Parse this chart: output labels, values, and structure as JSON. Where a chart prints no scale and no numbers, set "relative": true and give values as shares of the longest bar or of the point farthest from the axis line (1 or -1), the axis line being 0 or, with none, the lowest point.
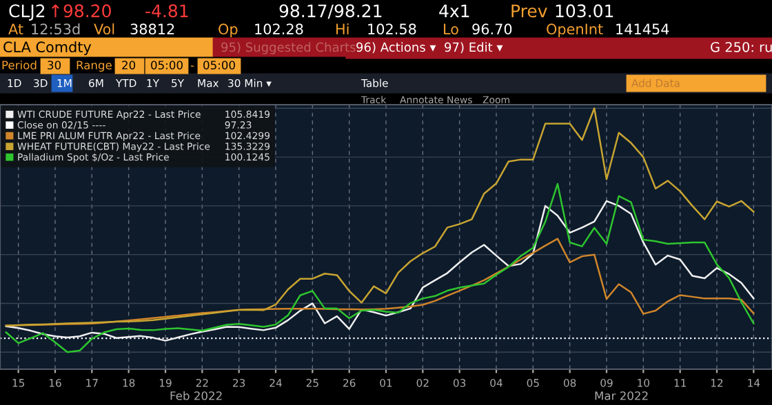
{
  "chart_data": {
    "type": "line",
    "relative": true,
    "legend": "top left",
    "grid": true,
    "marker": "none",
    "line_style": "solid",
    "categories": [
      null,
      "15",
      null,
      null,
      "16",
      null,
      null,
      "17",
      null,
      null,
      "18",
      null,
      null,
      "19",
      null,
      null,
      "22",
      null,
      null,
      "23",
      null,
      null,
      "24",
      null,
      null,
      "25",
      null,
      null,
      "26",
      null,
      null,
      "01",
      null,
      null,
      "02",
      null,
      null,
      "03",
      null,
      null,
      "04",
      null,
      null,
      "05",
      null,
      null,
      "08",
      null,
      null,
      "09",
      null,
      null,
      "10",
      null,
      null,
      "11",
      null,
      null,
      "12",
      null,
      null,
      "14",
      null
    ],
    "series": [
      {
        "name": "WTI CRUDE FUTURE Apr22 - Last Price",
        "color": "#f0f0f0",
        "values": [
          0.106,
          0.099,
          0.088,
          0.074,
          0.065,
          0.06,
          0.065,
          0.08,
          0.075,
          0.058,
          0.062,
          0.066,
          0.059,
          0.047,
          0.06,
          0.073,
          0.084,
          0.093,
          0.104,
          0.103,
          0.096,
          0.09,
          0.1,
          0.131,
          0.17,
          0.2,
          0.118,
          0.147,
          0.095,
          0.175,
          0.164,
          0.15,
          0.164,
          0.179,
          0.265,
          0.295,
          0.324,
          0.368,
          0.409,
          0.44,
          0.396,
          0.353,
          0.362,
          0.404,
          0.6,
          0.56,
          0.49,
          0.511,
          0.536,
          0.62,
          0.6,
          0.567,
          0.45,
          0.359,
          0.396,
          0.38,
          0.313,
          0.303,
          0.345,
          0.32,
          0.284,
          0.22,
          null
        ]
      },
      {
        "name": "LME PRI ALUM FUTR Apr22 - Last Price",
        "color": "#d0852a",
        "values": [
          0.109,
          0.11,
          0.111,
          0.112,
          0.114,
          0.115,
          0.116,
          0.117,
          0.121,
          0.126,
          0.13,
          0.135,
          0.14,
          0.145,
          0.15,
          0.155,
          0.16,
          0.164,
          0.169,
          0.174,
          0.175,
          0.176,
          0.177,
          0.178,
          0.178,
          0.178,
          0.177,
          0.176,
          0.176,
          0.175,
          0.176,
          0.178,
          0.182,
          0.187,
          0.194,
          0.21,
          0.231,
          0.252,
          0.273,
          0.295,
          0.323,
          0.351,
          0.38,
          0.407,
          0.437,
          0.465,
          0.368,
          0.393,
          0.4,
          0.218,
          0.279,
          0.245,
          0.157,
          0.17,
          0.208,
          0.234,
          0.227,
          0.22,
          0.22,
          0.22,
          0.215,
          0.159,
          null
        ]
      },
      {
        "name": "WHEAT FUTURE(CBT) May22 - Last Price",
        "color": "#c8a431",
        "values": [
          0.109,
          0.111,
          0.113,
          0.114,
          0.116,
          0.118,
          0.119,
          0.121,
          0.123,
          0.125,
          0.126,
          0.128,
          0.131,
          0.137,
          0.143,
          0.149,
          0.155,
          0.161,
          0.167,
          0.173,
          0.174,
          0.172,
          0.195,
          0.257,
          0.301,
          0.301,
          0.322,
          0.316,
          0.251,
          0.203,
          0.27,
          0.241,
          0.326,
          0.373,
          0.406,
          0.433,
          0.511,
          0.525,
          0.545,
          0.65,
          0.692,
          0.782,
          0.79,
          0.79,
          0.937,
          0.937,
          0.937,
          0.87,
          1.0,
          0.709,
          0.9,
          0.858,
          0.8,
          0.671,
          0.703,
          0.66,
          0.6,
          0.545,
          0.618,
          0.597,
          0.62,
          0.576,
          null
        ]
      },
      {
        "name": "Palladium Spot $/Oz - Last Price",
        "color": "#2ec52e",
        "values": [
          0.081,
          0.037,
          0.057,
          0.078,
          0.04,
          0.0,
          0.006,
          0.055,
          0.081,
          0.094,
          0.097,
          0.091,
          0.09,
          0.095,
          0.098,
          0.093,
          0.088,
          0.1,
          0.112,
          0.116,
          0.11,
          0.104,
          0.113,
          0.151,
          0.233,
          0.251,
          0.179,
          0.179,
          0.139,
          0.17,
          0.174,
          0.166,
          0.162,
          0.201,
          0.22,
          0.23,
          0.252,
          0.265,
          0.273,
          0.281,
          0.317,
          0.35,
          0.394,
          0.428,
          0.535,
          0.69,
          0.45,
          0.434,
          0.51,
          0.444,
          0.64,
          0.615,
          0.461,
          0.455,
          0.444,
          0.447,
          0.45,
          0.45,
          0.36,
          0.304,
          0.205,
          0.118,
          null
        ]
      }
    ],
    "ref_lines": [
      {
        "axis": "y",
        "value": 0.057,
        "label": "Close on 02/15 ----",
        "color": "#ffffff",
        "line_style": "dotted"
      }
    ],
    "annotations": [
      "CLJ2",
      "↑98.20",
      "-4.81",
      "98.17/98.21",
      "4x1",
      "Prev",
      "103.01",
      "At",
      "12:53d",
      "Vol",
      "38812",
      "Op",
      "102.28",
      "Hi",
      "102.58",
      "Lo",
      "96.70",
      "OpenInt",
      "141454",
      "CLA Comdty",
      "95) Suggested Charts",
      "96) Actions ▾",
      "97) Edit ▾",
      "G 250: ru",
      "Period",
      "30",
      "Range",
      "20",
      "05:00",
      "-",
      "05:00",
      "1D",
      "3D",
      "1M",
      "6M",
      "YTD",
      "1Y",
      "5Y",
      "Max",
      "30 Min ▾",
      "Table",
      "Add Data",
      "Track",
      "Annotate",
      "News",
      "Zoom",
      "Feb 2022",
      "Mar 2022",
      "105.8419",
      "97.23",
      "102.4299",
      "135.3229",
      "100.1245"
    ]
  }
}
